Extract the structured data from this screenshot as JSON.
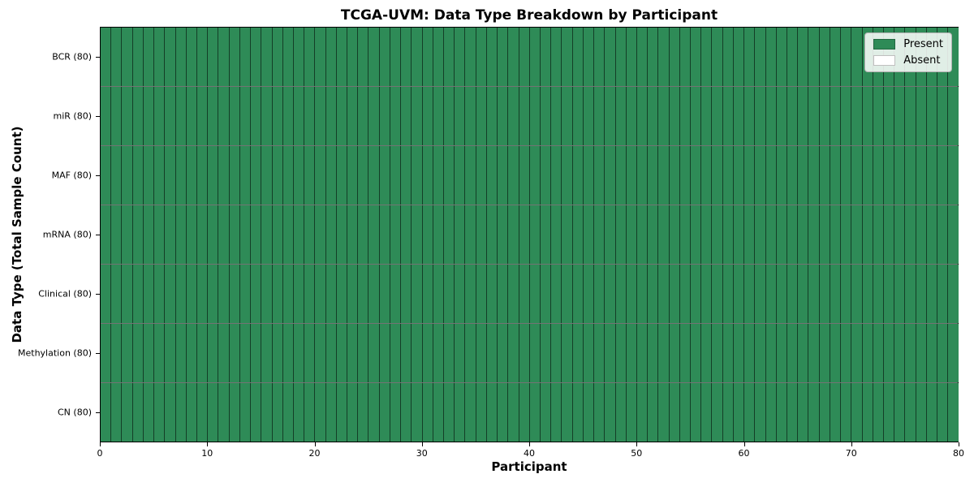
{
  "chart_data": {
    "type": "heatmap",
    "title": "TCGA-UVM: Data Type Breakdown by Participant",
    "xlabel": "Participant",
    "ylabel": "Data Type (Total Sample Count)",
    "xlim": [
      0,
      80
    ],
    "x_ticks": [
      0,
      10,
      20,
      30,
      40,
      50,
      60,
      70,
      80
    ],
    "n_participants": 80,
    "rows": [
      {
        "label": "BCR (80)",
        "data_type": "BCR",
        "total_sample_count": 80,
        "present_count": 80,
        "absent_count": 0
      },
      {
        "label": "miR (80)",
        "data_type": "miR",
        "total_sample_count": 80,
        "present_count": 80,
        "absent_count": 0
      },
      {
        "label": "MAF (80)",
        "data_type": "MAF",
        "total_sample_count": 80,
        "present_count": 80,
        "absent_count": 0
      },
      {
        "label": "mRNA (80)",
        "data_type": "mRNA",
        "total_sample_count": 80,
        "present_count": 80,
        "absent_count": 0
      },
      {
        "label": "Clinical (80)",
        "data_type": "Clinical",
        "total_sample_count": 80,
        "present_count": 80,
        "absent_count": 0
      },
      {
        "label": "Methylation (80)",
        "data_type": "Methylation",
        "total_sample_count": 80,
        "present_count": 80,
        "absent_count": 0
      },
      {
        "label": "CN (80)",
        "data_type": "CN",
        "total_sample_count": 80,
        "present_count": 80,
        "absent_count": 0
      }
    ],
    "legend": {
      "position": "upper-right",
      "entries": [
        {
          "label": "Present",
          "color": "#2e8b57"
        },
        {
          "label": "Absent",
          "color": "#ffffff"
        }
      ]
    },
    "colors": {
      "present": "#2e8b57",
      "absent": "#ffffff",
      "cell_border": "#1a1a1a",
      "spine": "#000000",
      "background": "#ffffff"
    }
  }
}
